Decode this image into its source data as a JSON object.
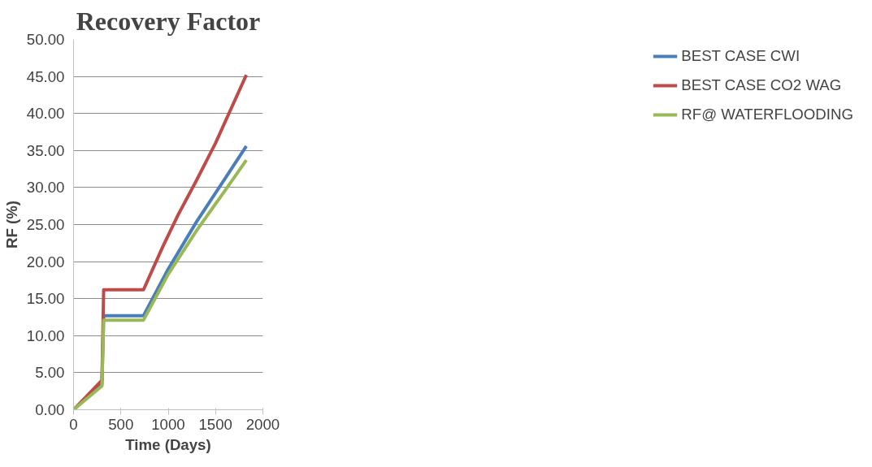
{
  "chart_data": {
    "type": "line",
    "title": "Recovery Factor",
    "xlabel": "Time (Days)",
    "ylabel": "RF (%)",
    "xlim": [
      0,
      2000
    ],
    "xticks": [
      0,
      500,
      1000,
      1500,
      2000
    ],
    "ylim": [
      0,
      50
    ],
    "yticks": [
      {
        "value": 0,
        "label": "0.00"
      },
      {
        "value": 5,
        "label": "5.00"
      },
      {
        "value": 10,
        "label": "10.00"
      },
      {
        "value": 15,
        "label": "15.00"
      },
      {
        "value": 20,
        "label": "20.00"
      },
      {
        "value": 25,
        "label": "25.00"
      },
      {
        "value": 30,
        "label": "30.00"
      },
      {
        "value": 35,
        "label": "35.00"
      },
      {
        "value": 40,
        "label": "40.00"
      },
      {
        "value": 45,
        "label": "45.00"
      },
      {
        "value": 50,
        "label": "50.00"
      }
    ],
    "grid": "y",
    "legend": "right",
    "series": [
      {
        "name": "BEST CASE CWI",
        "color": "#4a7ebb",
        "x": [
          0,
          300,
          318,
          739,
          1000,
          1300,
          1600,
          1825
        ],
        "values": [
          0,
          3.5,
          12.7,
          12.7,
          19.0,
          25.4,
          31.2,
          35.6
        ]
      },
      {
        "name": "BEST CASE CO2 WAG",
        "color": "#be4b48",
        "x": [
          0,
          300,
          318,
          739,
          942,
          1100,
          1300,
          1500,
          1825
        ],
        "values": [
          0,
          4.0,
          16.2,
          16.2,
          22.0,
          26.2,
          31.0,
          36.0,
          45.2
        ]
      },
      {
        "name": "RF@ WATERFLOODING",
        "color": "#98b954",
        "x": [
          0,
          300,
          318,
          739,
          1000,
          1300,
          1600,
          1825
        ],
        "values": [
          0,
          3.2,
          12.1,
          12.1,
          18.3,
          24.2,
          29.6,
          33.7
        ]
      }
    ]
  }
}
